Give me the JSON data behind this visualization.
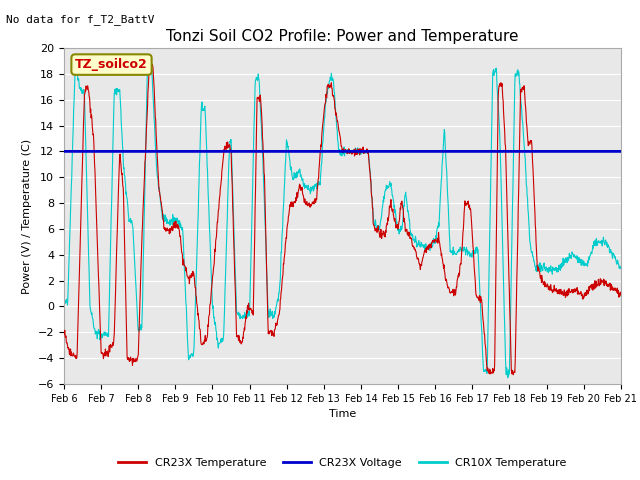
{
  "title": "Tonzi Soil CO2 Profile: Power and Temperature",
  "subtitle": "No data for f_T2_BattV",
  "ylabel": "Power (V) / Temperature (C)",
  "xlabel": "Time",
  "ylim": [
    -6,
    20
  ],
  "yticks": [
    -6,
    -4,
    -2,
    0,
    2,
    4,
    6,
    8,
    10,
    12,
    14,
    16,
    18,
    20
  ],
  "xtick_labels": [
    "Feb 6",
    "Feb 7",
    "Feb 8",
    "Feb 9",
    "Feb 10",
    "Feb 11",
    "Feb 12",
    "Feb 13",
    "Feb 14",
    "Feb 15",
    "Feb 16",
    "Feb 17",
    "Feb 18",
    "Feb 19",
    "Feb 20",
    "Feb 21"
  ],
  "voltage_value": 12.0,
  "cr23x_color": "#cc0000",
  "voltage_color": "#0000cc",
  "cr10x_color": "#00cccc",
  "plot_bg_color": "#e8e8e8",
  "grid_color": "#ffffff",
  "legend_label_box": "TZ_soilco2",
  "legend_entries": [
    "CR23X Temperature",
    "CR23X Voltage",
    "CR10X Temperature"
  ],
  "title_fontsize": 11,
  "axis_fontsize": 8,
  "tick_fontsize": 8,
  "n_days": 15,
  "pts_per_day": 96
}
